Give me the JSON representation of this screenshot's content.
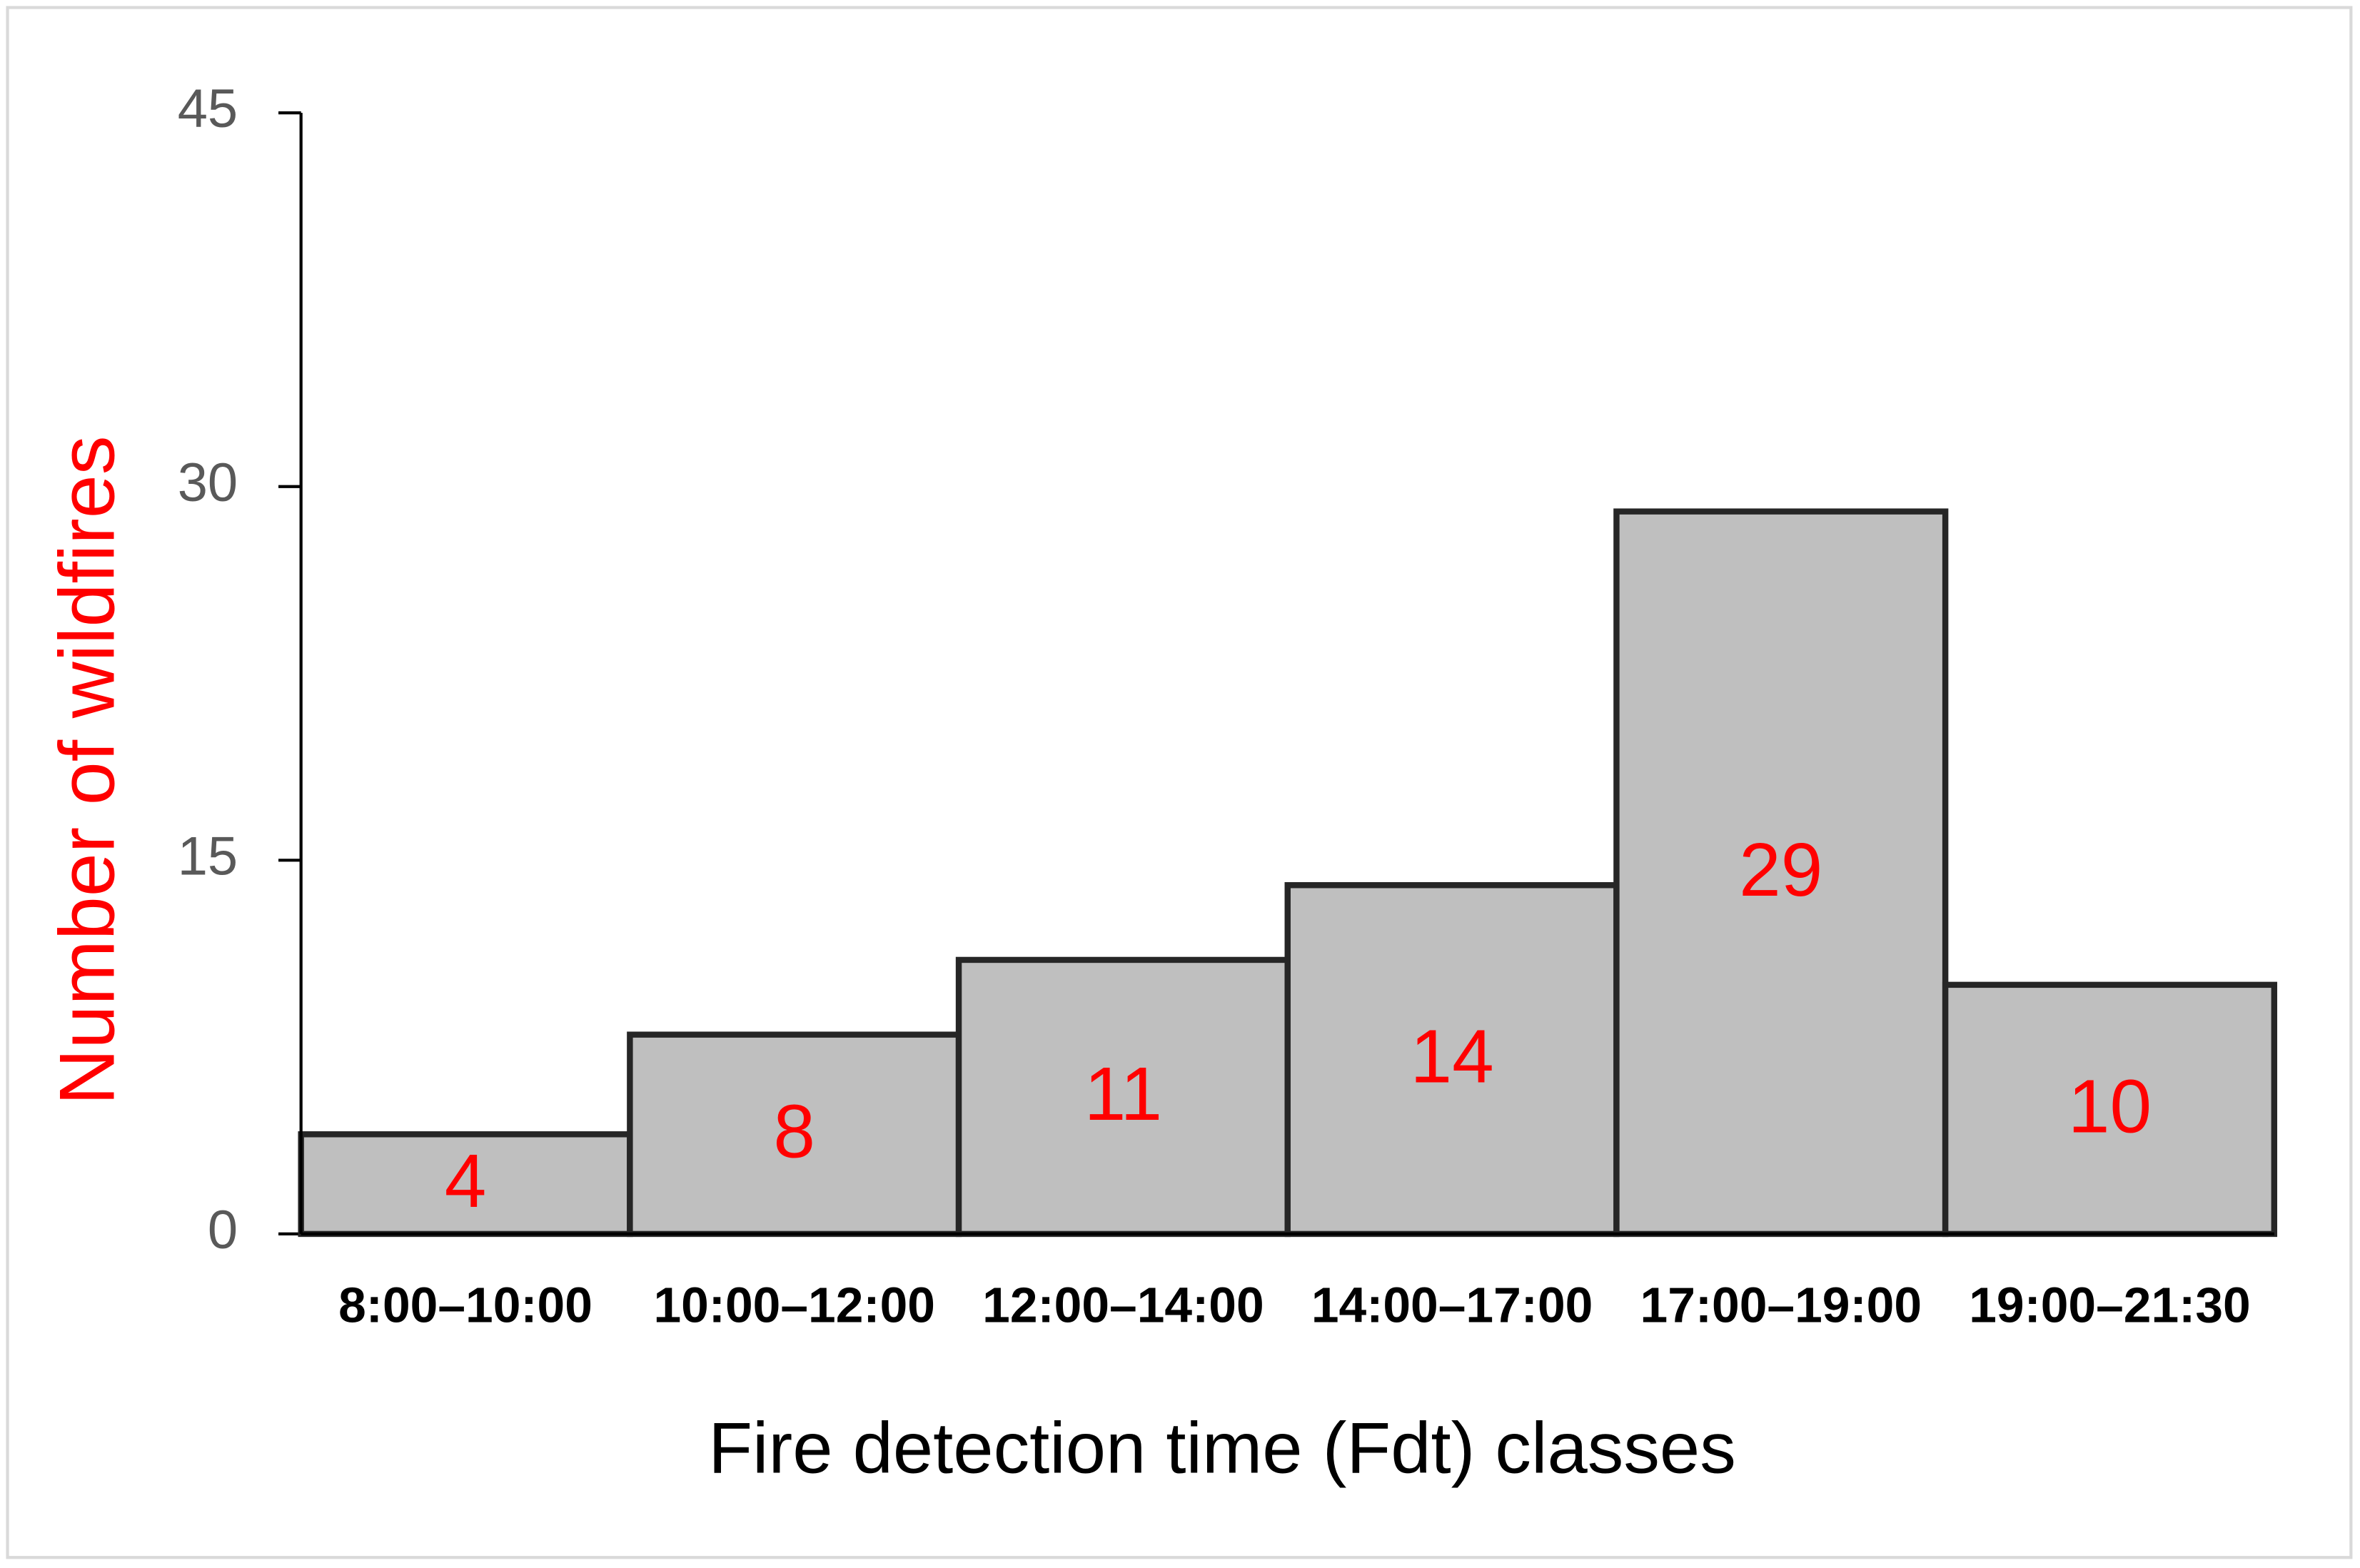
{
  "chart_data": {
    "type": "bar",
    "categories": [
      "8:00–10:00",
      "10:00–12:00",
      "12:00–14:00",
      "14:00–17:00",
      "17:00–19:00",
      "19:00–21:30"
    ],
    "values": [
      4,
      8,
      11,
      14,
      29,
      10
    ],
    "color": "#bfbfbf",
    "value_label_color": "#ff0000",
    "xlabel": "Fire detection time (Fdt) classes",
    "ylabel": "Number of wildfires",
    "ylim": [
      0,
      45
    ],
    "yticks": [
      0,
      15,
      30,
      45
    ],
    "grid": false
  }
}
